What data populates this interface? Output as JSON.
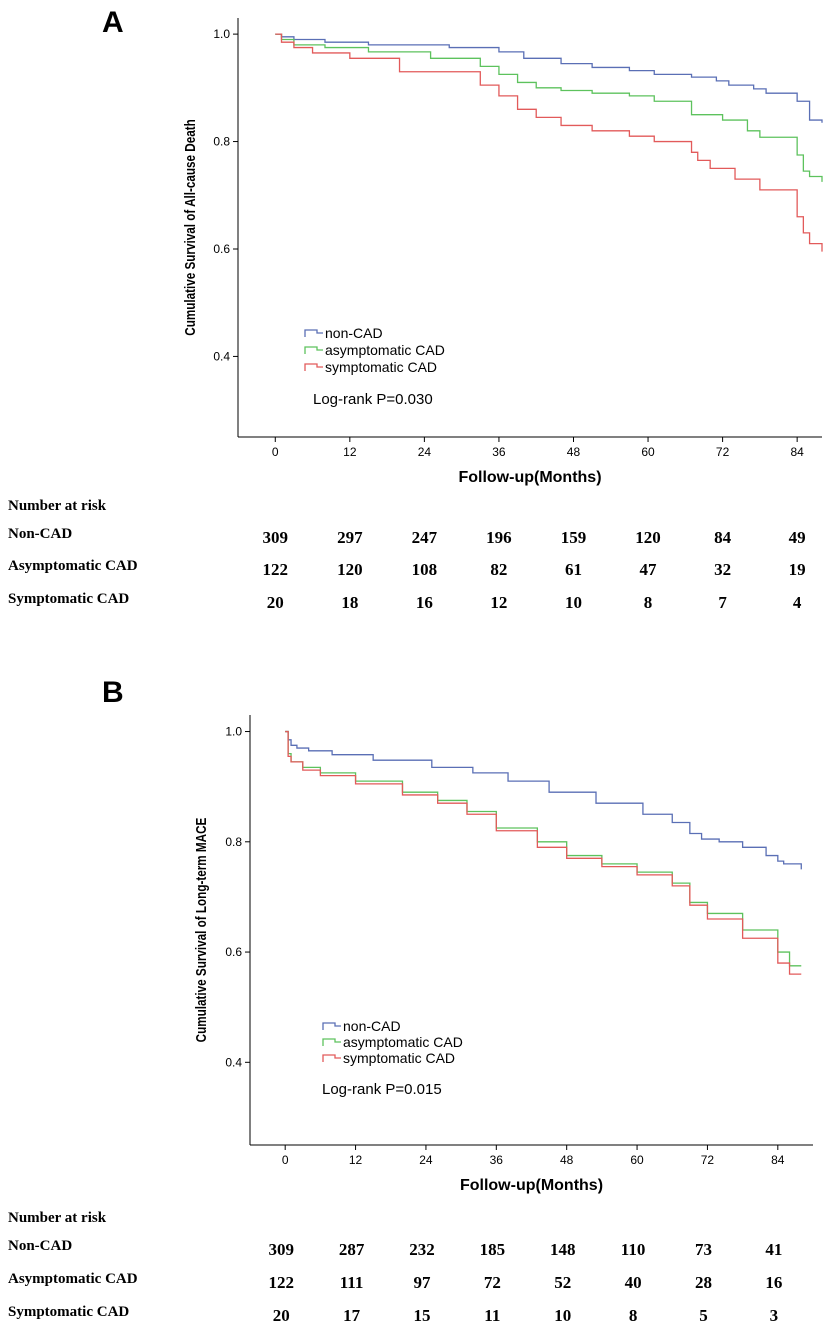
{
  "chart_data": [
    {
      "type": "line",
      "panel_label": "A",
      "title": "",
      "xlabel": "Follow-up(Months)",
      "ylabel": "Cumulative Survival of All-cause Death",
      "xticks": [
        0,
        12,
        24,
        36,
        48,
        60,
        72,
        84
      ],
      "yticks": [
        "0.4",
        "0.6",
        "0.8",
        "1.0"
      ],
      "xlim": [
        -6,
        88
      ],
      "ylim": [
        0.25,
        1.03
      ],
      "grid": false,
      "legend": "center-left",
      "annotation": "Log-rank P=0.030",
      "series": [
        {
          "name": "non-CAD",
          "color": "#5a6fb5",
          "x": [
            0,
            1,
            3,
            8,
            15,
            28,
            36,
            40,
            46,
            51,
            57,
            61,
            67,
            71,
            73,
            77,
            79,
            84,
            86,
            88
          ],
          "y": [
            1.0,
            0.995,
            0.99,
            0.985,
            0.98,
            0.975,
            0.967,
            0.955,
            0.945,
            0.938,
            0.932,
            0.925,
            0.92,
            0.913,
            0.905,
            0.898,
            0.89,
            0.875,
            0.84,
            0.835
          ]
        },
        {
          "name": "asymptomatic CAD",
          "color": "#5dc25d",
          "x": [
            0,
            1,
            3,
            8,
            15,
            25,
            33,
            36,
            39,
            42,
            46,
            51,
            57,
            61,
            67,
            72,
            76,
            78,
            84,
            85,
            86,
            88
          ],
          "y": [
            1.0,
            0.99,
            0.98,
            0.975,
            0.967,
            0.955,
            0.94,
            0.925,
            0.91,
            0.9,
            0.895,
            0.89,
            0.885,
            0.875,
            0.85,
            0.84,
            0.82,
            0.808,
            0.775,
            0.745,
            0.735,
            0.725
          ]
        },
        {
          "name": "symptomatic CAD",
          "color": "#e25a5a",
          "x": [
            0,
            1,
            3,
            6,
            12,
            20,
            33,
            36,
            39,
            42,
            46,
            51,
            57,
            61,
            67,
            68,
            70,
            74,
            78,
            84,
            85,
            86,
            88
          ],
          "y": [
            1.0,
            0.985,
            0.975,
            0.965,
            0.955,
            0.93,
            0.905,
            0.885,
            0.86,
            0.845,
            0.83,
            0.82,
            0.81,
            0.8,
            0.78,
            0.765,
            0.75,
            0.73,
            0.71,
            0.66,
            0.63,
            0.61,
            0.595
          ]
        }
      ]
    },
    {
      "type": "line",
      "panel_label": "B",
      "title": "",
      "xlabel": "Follow-up(Months)",
      "ylabel": "Cumulative Survival of Long-term MACE",
      "xticks": [
        0,
        12,
        24,
        36,
        48,
        60,
        72,
        84
      ],
      "yticks": [
        "0.4",
        "0.6",
        "0.8",
        "1.0"
      ],
      "xlim": [
        -6,
        90
      ],
      "ylim": [
        0.25,
        1.03
      ],
      "grid": false,
      "legend": "center-left",
      "annotation": "Log-rank P=0.015",
      "series": [
        {
          "name": "non-CAD",
          "color": "#5a6fb5",
          "x": [
            0,
            0.5,
            1,
            2,
            4,
            8,
            15,
            25,
            32,
            38,
            45,
            53,
            61,
            66,
            69,
            71,
            74,
            78,
            82,
            84,
            85,
            88
          ],
          "y": [
            1.0,
            0.985,
            0.975,
            0.97,
            0.965,
            0.958,
            0.948,
            0.935,
            0.925,
            0.91,
            0.89,
            0.87,
            0.85,
            0.835,
            0.815,
            0.805,
            0.8,
            0.79,
            0.775,
            0.765,
            0.76,
            0.75
          ]
        },
        {
          "name": "asymptomatic CAD",
          "color": "#5dc25d",
          "x": [
            0,
            0.5,
            1,
            3,
            6,
            12,
            20,
            26,
            31,
            36,
            43,
            48,
            54,
            60,
            66,
            69,
            72,
            78,
            84,
            86,
            88
          ],
          "y": [
            1.0,
            0.96,
            0.945,
            0.935,
            0.925,
            0.91,
            0.89,
            0.875,
            0.855,
            0.825,
            0.8,
            0.775,
            0.76,
            0.745,
            0.725,
            0.69,
            0.67,
            0.64,
            0.6,
            0.575,
            0.575
          ]
        },
        {
          "name": "symptomatic CAD",
          "color": "#e25a5a",
          "x": [
            0,
            0.5,
            1,
            3,
            6,
            12,
            20,
            26,
            31,
            36,
            43,
            48,
            54,
            60,
            66,
            69,
            72,
            78,
            84,
            86,
            88
          ],
          "y": [
            1.0,
            0.955,
            0.945,
            0.93,
            0.92,
            0.905,
            0.885,
            0.87,
            0.85,
            0.82,
            0.79,
            0.77,
            0.755,
            0.74,
            0.72,
            0.685,
            0.66,
            0.625,
            0.58,
            0.56,
            0.56
          ]
        }
      ]
    }
  ],
  "risk_tables": [
    {
      "title": "Number at risk",
      "rows": [
        {
          "label": "Non-CAD",
          "values": [
            "309",
            "297",
            "247",
            "196",
            "159",
            "120",
            "84",
            "49"
          ]
        },
        {
          "label": "Asymptomatic CAD",
          "values": [
            "122",
            "120",
            "108",
            "82",
            "61",
            "47",
            "32",
            "19"
          ]
        },
        {
          "label": "Symptomatic CAD",
          "values": [
            "20",
            "18",
            "16",
            "12",
            "10",
            "8",
            "7",
            "4"
          ]
        }
      ]
    },
    {
      "title": "Number at risk",
      "rows": [
        {
          "label": "Non-CAD",
          "values": [
            "309",
            "287",
            "232",
            "185",
            "148",
            "110",
            "73",
            "41"
          ]
        },
        {
          "label": "Asymptomatic CAD",
          "values": [
            "122",
            "111",
            "97",
            "72",
            "52",
            "40",
            "28",
            "16"
          ]
        },
        {
          "label": "Symptomatic CAD",
          "values": [
            "20",
            "17",
            "15",
            "11",
            "10",
            "8",
            "5",
            "3"
          ]
        }
      ]
    }
  ]
}
